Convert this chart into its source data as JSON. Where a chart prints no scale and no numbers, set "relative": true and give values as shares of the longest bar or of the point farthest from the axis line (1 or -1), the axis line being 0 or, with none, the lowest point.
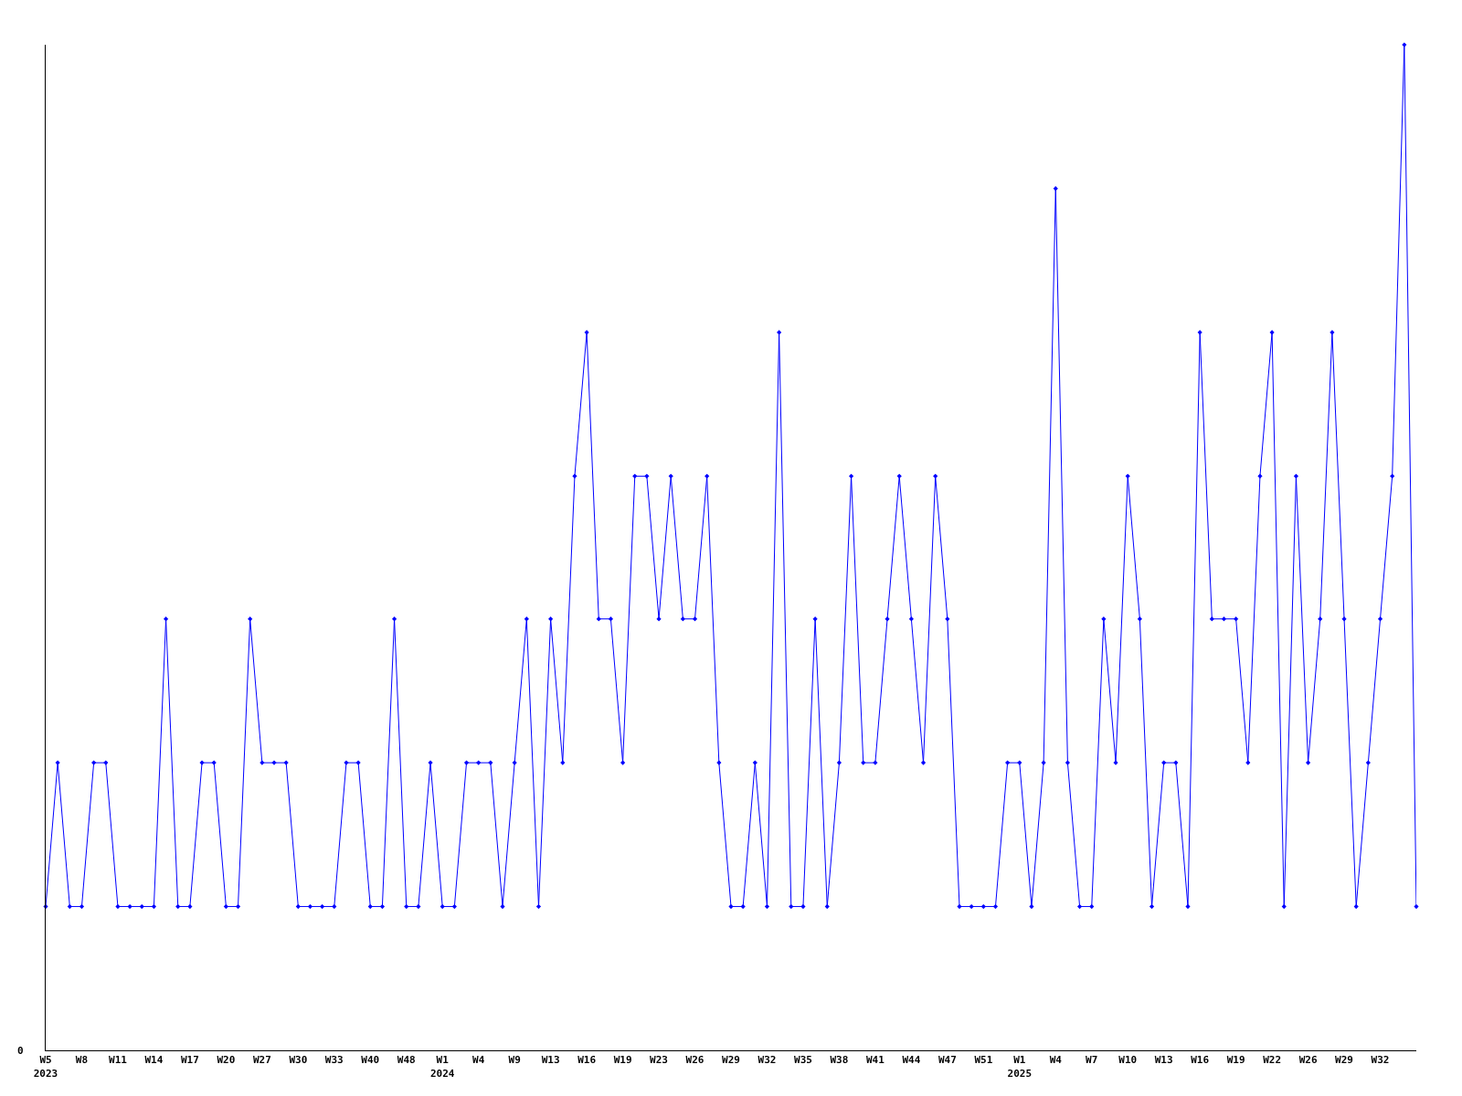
{
  "chart_data": {
    "type": "line",
    "relative": true,
    "color": "#0000ff",
    "marker": "diamond",
    "line_style": "solid",
    "tick_labels": "x",
    "annotations": [
      "0"
    ],
    "categories": [
      "W5\n2023",
      null,
      null,
      "W8",
      null,
      null,
      "W11",
      null,
      null,
      "W14",
      null,
      null,
      "W17",
      null,
      null,
      "W20",
      null,
      null,
      "W27",
      null,
      null,
      "W30",
      null,
      null,
      "W33",
      null,
      null,
      "W40",
      null,
      null,
      "W48",
      null,
      null,
      "W1\n2024",
      null,
      null,
      "W4",
      null,
      null,
      "W9",
      null,
      null,
      "W13",
      null,
      null,
      "W16",
      null,
      null,
      "W19",
      null,
      null,
      "W23",
      null,
      null,
      "W26",
      null,
      null,
      "W29",
      null,
      null,
      "W32",
      null,
      null,
      "W35",
      null,
      null,
      "W38",
      null,
      null,
      "W41",
      null,
      null,
      "W44",
      null,
      null,
      "W47",
      null,
      null,
      "W51",
      null,
      null,
      "W1\n2025",
      null,
      null,
      "W4",
      null,
      null,
      "W7",
      null,
      null,
      "W10",
      null,
      null,
      "W13",
      null,
      null,
      "W16",
      null,
      null,
      "W19",
      null,
      null,
      "W22",
      null,
      null,
      "W26",
      null,
      null,
      "W29",
      null,
      null,
      "W32",
      null,
      null,
      null
    ],
    "values": [
      0.143,
      0.286,
      0.143,
      0.143,
      0.286,
      0.286,
      0.143,
      0.143,
      0.143,
      0.143,
      0.429,
      0.143,
      0.143,
      0.286,
      0.286,
      0.143,
      0.143,
      0.429,
      0.286,
      0.286,
      0.286,
      0.143,
      0.143,
      0.143,
      0.143,
      0.286,
      0.286,
      0.143,
      0.143,
      0.429,
      0.143,
      0.143,
      0.286,
      0.143,
      0.143,
      0.286,
      0.286,
      0.286,
      0.143,
      0.286,
      0.429,
      0.143,
      0.429,
      0.286,
      0.571,
      0.714,
      0.429,
      0.429,
      0.286,
      0.571,
      0.571,
      0.429,
      0.571,
      0.429,
      0.429,
      0.571,
      0.286,
      0.143,
      0.143,
      0.286,
      0.143,
      0.714,
      0.143,
      0.143,
      0.429,
      0.143,
      0.286,
      0.571,
      0.286,
      0.286,
      0.429,
      0.571,
      0.429,
      0.286,
      0.571,
      0.429,
      0.143,
      0.143,
      0.143,
      0.143,
      0.286,
      0.286,
      0.143,
      0.286,
      0.857,
      0.286,
      0.143,
      0.143,
      0.429,
      0.286,
      0.571,
      0.429,
      0.143,
      0.286,
      0.286,
      0.143,
      0.714,
      0.429,
      0.429,
      0.429,
      0.286,
      0.571,
      0.714,
      0.143,
      0.571,
      0.286,
      0.429,
      0.714,
      0.429,
      0.143,
      0.286,
      0.429,
      0.571,
      1,
      0.143
    ]
  }
}
